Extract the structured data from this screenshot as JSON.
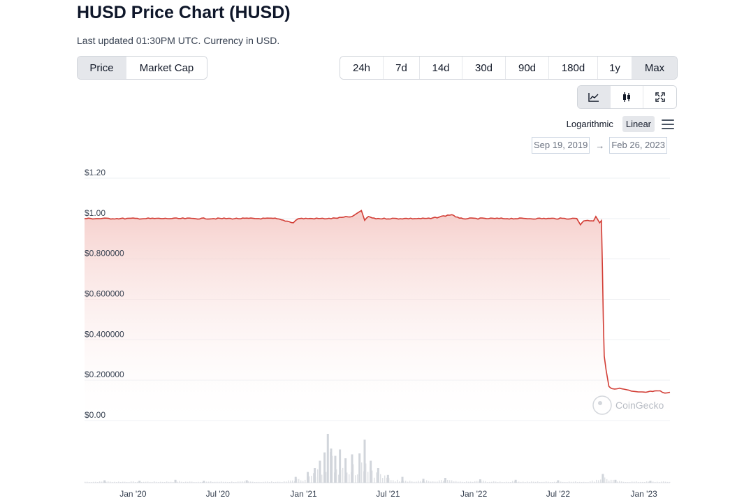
{
  "header": {
    "title": "HUSD Price Chart (HUSD)",
    "subtitle": "Last updated 01:30PM UTC. Currency in USD."
  },
  "metric_tabs": [
    {
      "label": "Price",
      "active": true
    },
    {
      "label": "Market Cap",
      "active": false
    }
  ],
  "range_tabs": [
    {
      "label": "24h",
      "active": false
    },
    {
      "label": "7d",
      "active": false
    },
    {
      "label": "14d",
      "active": false
    },
    {
      "label": "30d",
      "active": false
    },
    {
      "label": "90d",
      "active": false
    },
    {
      "label": "180d",
      "active": false
    },
    {
      "label": "1y",
      "active": false
    },
    {
      "label": "Max",
      "active": true
    }
  ],
  "view_tabs": [
    {
      "icon": "line-chart-icon",
      "active": true
    },
    {
      "icon": "candlestick-icon",
      "active": false
    },
    {
      "icon": "fullscreen-icon",
      "active": false
    }
  ],
  "scale": {
    "log_label": "Logarithmic",
    "linear_label": "Linear",
    "active": "linear",
    "menu_icon": "hamburger-menu-icon"
  },
  "date_range": {
    "from": "Sep 19, 2019",
    "to": "Feb 26, 2023",
    "arrow": "→"
  },
  "watermark": "CoinGecko",
  "colors": {
    "line": "#d23c34",
    "area_top": "#f4c7c3",
    "volume": "#d1d5db",
    "grid": "#eef0f3",
    "active_bg": "#e5e7eb"
  },
  "chart_data": {
    "type": "line",
    "title": "",
    "xlabel": "",
    "ylabel": "",
    "ylim": [
      0,
      1.2
    ],
    "y_ticks": [
      {
        "value": 1.2,
        "label": "$1.20"
      },
      {
        "value": 1.0,
        "label": "$1.00"
      },
      {
        "value": 0.8,
        "label": "$0.800000"
      },
      {
        "value": 0.6,
        "label": "$0.600000"
      },
      {
        "value": 0.4,
        "label": "$0.400000"
      },
      {
        "value": 0.2,
        "label": "$0.200000"
      },
      {
        "value": 0.0,
        "label": "$0.00"
      }
    ],
    "x_range": [
      "2019-09-19",
      "2023-02-26"
    ],
    "x_ticks": [
      {
        "date": "2020-01-01",
        "label": "Jan '20"
      },
      {
        "date": "2020-07-01",
        "label": "Jul '20"
      },
      {
        "date": "2021-01-01",
        "label": "Jan '21"
      },
      {
        "date": "2021-07-01",
        "label": "Jul '21"
      },
      {
        "date": "2022-01-01",
        "label": "Jan '22"
      },
      {
        "date": "2022-07-01",
        "label": "Jul '22"
      },
      {
        "date": "2023-01-01",
        "label": "Jan '23"
      }
    ],
    "price_series": {
      "name": "",
      "points": [
        [
          "2019-09-19",
          1.0
        ],
        [
          "2019-11-01",
          1.0
        ],
        [
          "2020-01-01",
          1.0
        ],
        [
          "2020-03-15",
          1.0
        ],
        [
          "2020-05-01",
          1.0
        ],
        [
          "2020-07-01",
          1.0
        ],
        [
          "2020-09-01",
          1.0
        ],
        [
          "2020-11-01",
          1.0
        ],
        [
          "2020-12-10",
          0.98
        ],
        [
          "2020-12-20",
          1.0
        ],
        [
          "2021-01-01",
          1.0
        ],
        [
          "2021-03-01",
          1.0
        ],
        [
          "2021-04-15",
          1.01
        ],
        [
          "2021-05-05",
          1.04
        ],
        [
          "2021-05-12",
          0.99
        ],
        [
          "2021-05-20",
          1.01
        ],
        [
          "2021-06-01",
          1.0
        ],
        [
          "2021-08-01",
          1.0
        ],
        [
          "2021-10-01",
          1.0
        ],
        [
          "2021-11-15",
          1.02
        ],
        [
          "2021-12-01",
          1.0
        ],
        [
          "2022-01-01",
          1.0
        ],
        [
          "2022-03-01",
          1.0
        ],
        [
          "2022-05-01",
          1.0
        ],
        [
          "2022-07-01",
          1.0
        ],
        [
          "2022-08-10",
          1.0
        ],
        [
          "2022-08-18",
          0.97
        ],
        [
          "2022-08-25",
          0.99
        ],
        [
          "2022-09-15",
          0.99
        ],
        [
          "2022-09-20",
          1.01
        ],
        [
          "2022-09-28",
          0.98
        ],
        [
          "2022-10-02",
          0.99
        ],
        [
          "2022-10-04",
          0.76
        ],
        [
          "2022-10-06",
          0.5
        ],
        [
          "2022-10-08",
          0.32
        ],
        [
          "2022-10-12",
          0.25
        ],
        [
          "2022-10-18",
          0.17
        ],
        [
          "2022-10-25",
          0.155
        ],
        [
          "2022-11-05",
          0.16
        ],
        [
          "2022-11-20",
          0.155
        ],
        [
          "2022-12-05",
          0.145
        ],
        [
          "2022-12-20",
          0.14
        ],
        [
          "2023-01-05",
          0.14
        ],
        [
          "2023-01-20",
          0.145
        ],
        [
          "2023-02-05",
          0.145
        ],
        [
          "2023-02-15",
          0.135
        ],
        [
          "2023-02-26",
          0.14
        ]
      ]
    },
    "volume_series": {
      "name": "",
      "relative_heights": [
        [
          "2019-11-01",
          0.05
        ],
        [
          "2020-01-15",
          0.04
        ],
        [
          "2020-04-01",
          0.06
        ],
        [
          "2020-06-01",
          0.04
        ],
        [
          "2020-09-01",
          0.05
        ],
        [
          "2020-12-15",
          0.12
        ],
        [
          "2021-01-10",
          0.22
        ],
        [
          "2021-01-25",
          0.3
        ],
        [
          "2021-02-05",
          0.45
        ],
        [
          "2021-02-15",
          0.62
        ],
        [
          "2021-02-22",
          1.0
        ],
        [
          "2021-03-01",
          0.7
        ],
        [
          "2021-03-10",
          0.55
        ],
        [
          "2021-03-20",
          0.68
        ],
        [
          "2021-04-01",
          0.5
        ],
        [
          "2021-04-15",
          0.58
        ],
        [
          "2021-05-01",
          0.6
        ],
        [
          "2021-05-12",
          0.88
        ],
        [
          "2021-05-25",
          0.45
        ],
        [
          "2021-06-10",
          0.3
        ],
        [
          "2021-07-01",
          0.16
        ],
        [
          "2021-08-01",
          0.12
        ],
        [
          "2021-09-15",
          0.08
        ],
        [
          "2021-11-01",
          0.1
        ],
        [
          "2022-01-15",
          0.07
        ],
        [
          "2022-04-01",
          0.06
        ],
        [
          "2022-07-01",
          0.05
        ],
        [
          "2022-10-05",
          0.18
        ],
        [
          "2022-11-01",
          0.06
        ],
        [
          "2023-01-15",
          0.04
        ]
      ]
    }
  }
}
